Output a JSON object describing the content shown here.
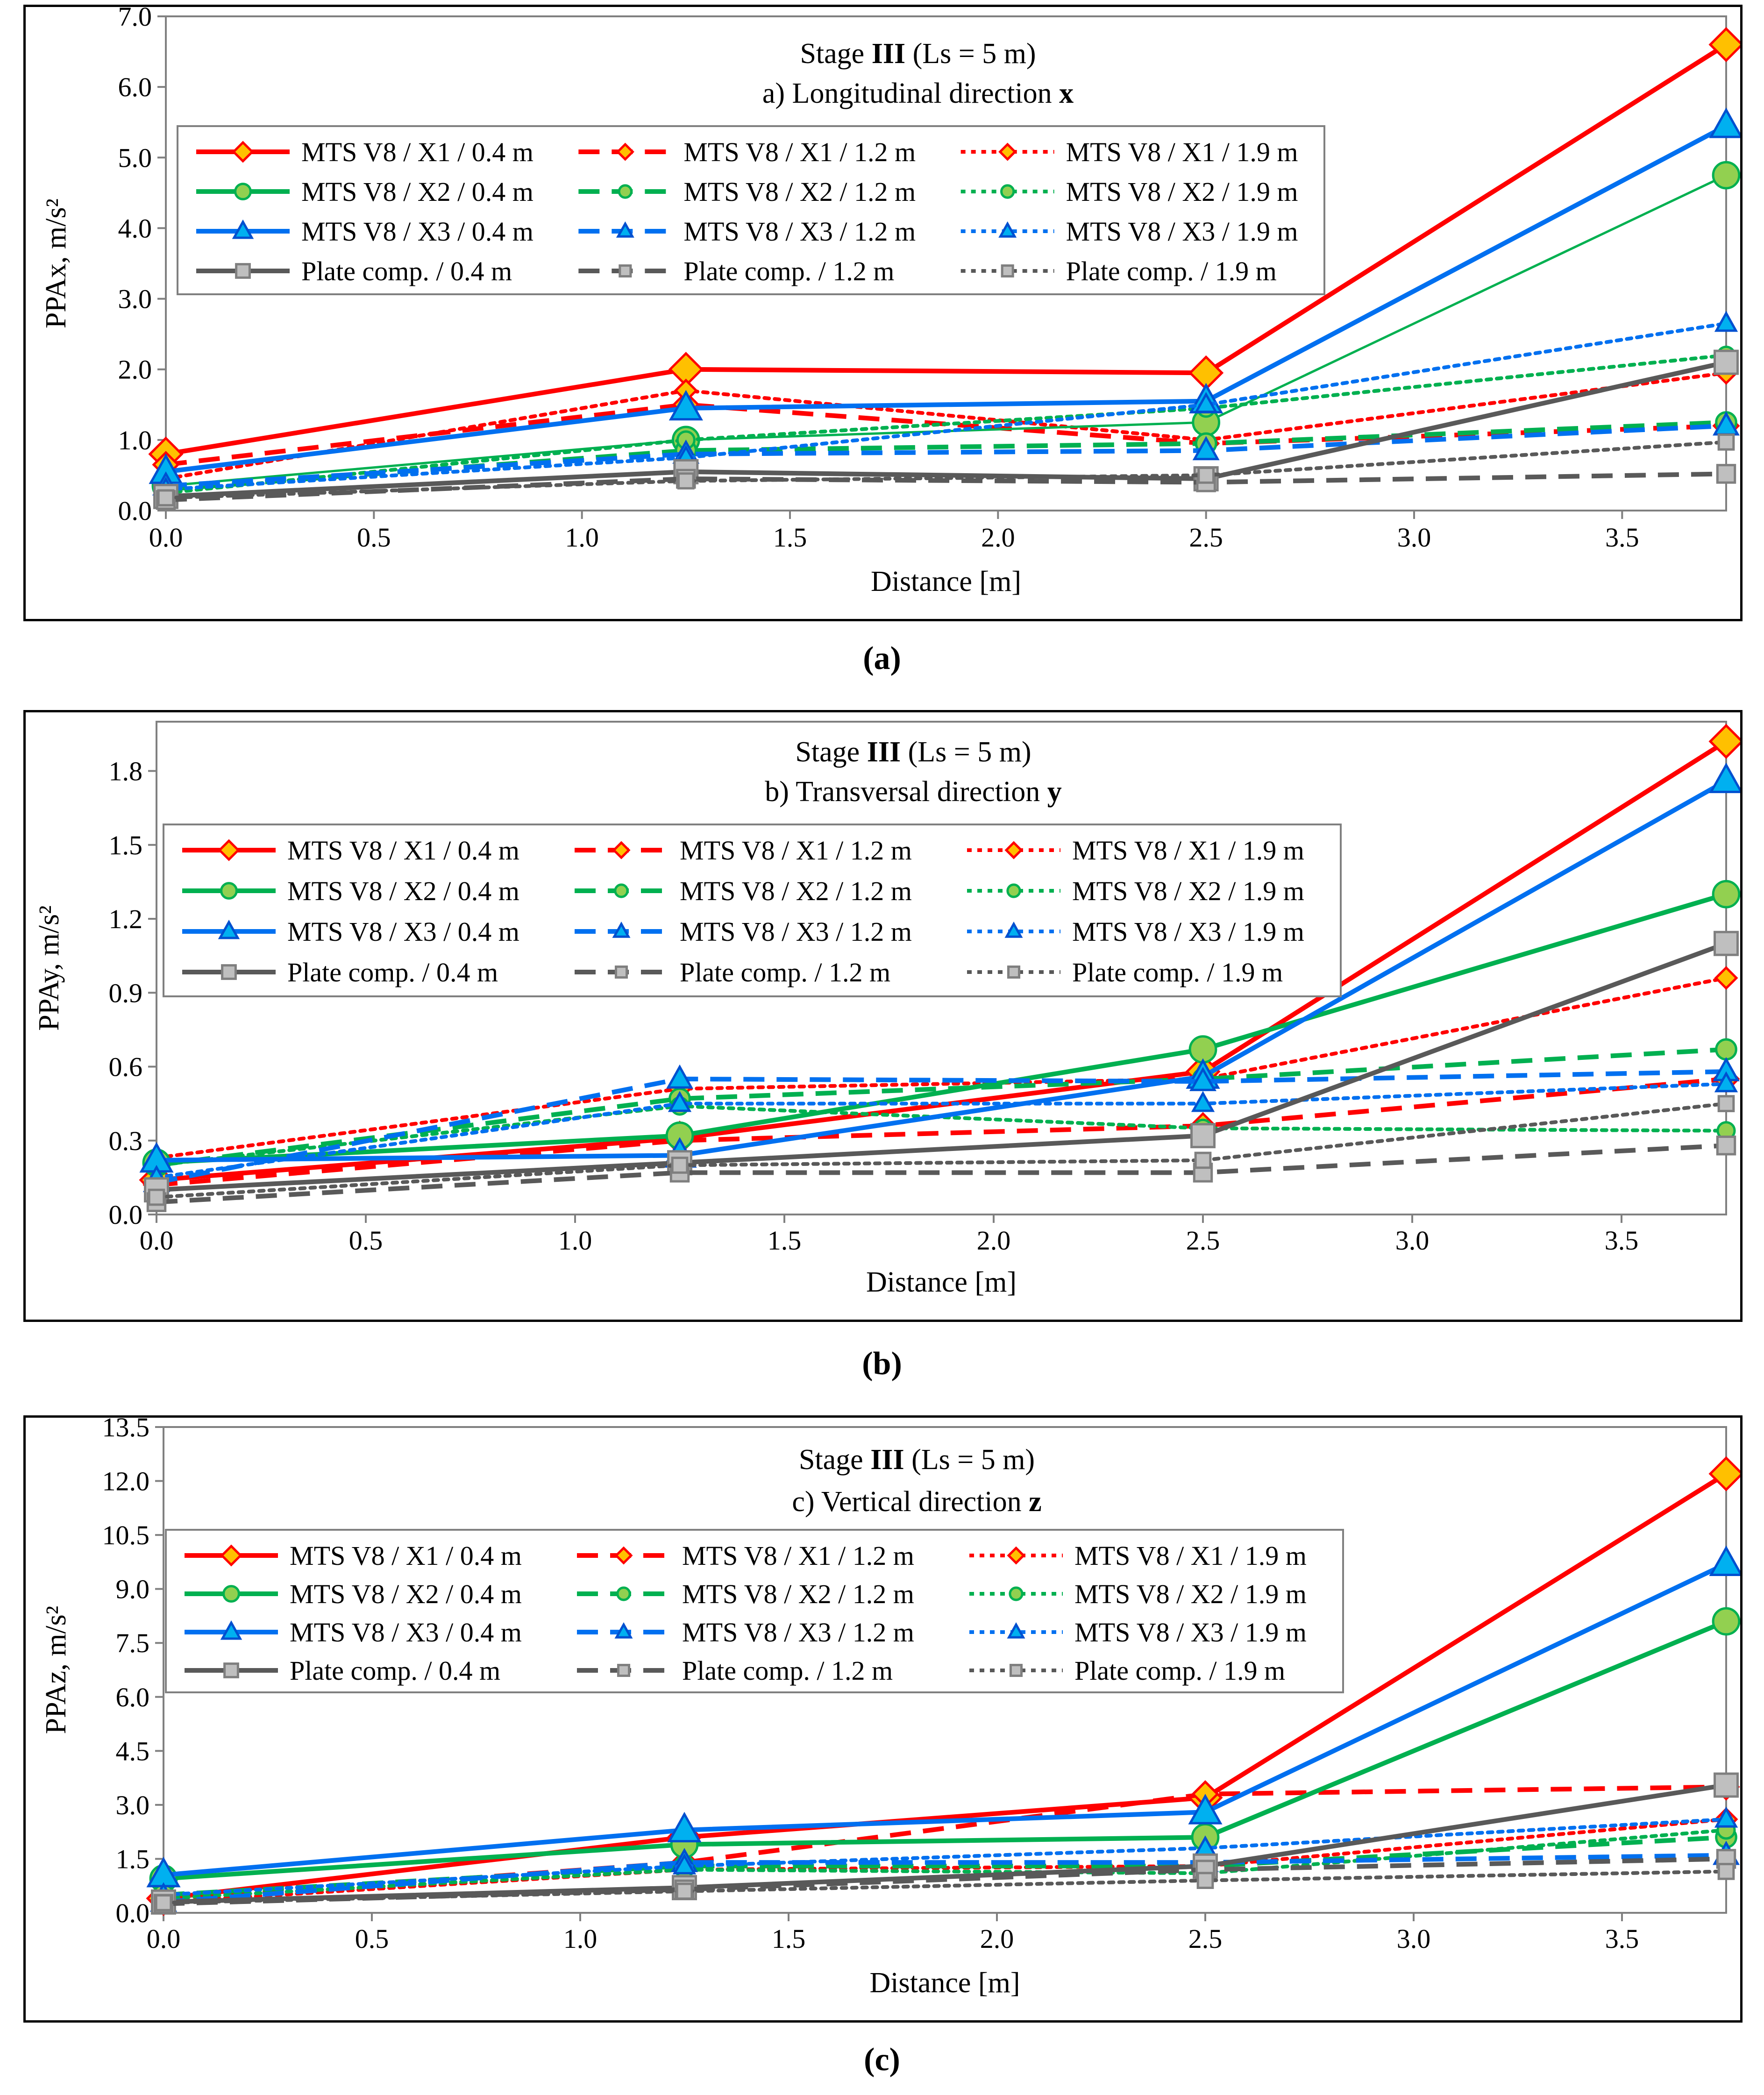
{
  "captions": [
    "(a)",
    "(b)",
    "(c)"
  ],
  "legend_entries": [
    "MTS V8 / X1 / 0.4 m",
    "MTS V8 / X1 / 1.2 m",
    "MTS V8 / X1 / 1.9 m",
    "MTS V8 / X2 / 0.4 m",
    "MTS V8 / X2 / 1.2 m",
    "MTS V8 / X2 / 1.9 m",
    "MTS V8 / X3 / 0.4 m",
    "MTS V8 / X3 / 1.2 m",
    "MTS V8 / X3 / 1.9 m",
    "Plate comp. / 0.4 m",
    "Plate comp. / 1.2 m",
    "Plate comp. / 1.9 m"
  ],
  "series_styles": {
    "X1": {
      "color": "#ff0000",
      "marker": "diamond",
      "marker_fill": "#ffc000",
      "marker_stroke": "#ff0000"
    },
    "X2": {
      "color": "#00b050",
      "marker": "circle",
      "marker_fill": "#92d050",
      "marker_stroke": "#00b050"
    },
    "X3": {
      "color": "#0070f0",
      "marker": "triangle",
      "marker_fill": "#00b0f0",
      "marker_stroke": "#0050d0"
    },
    "PC": {
      "color": "#595959",
      "marker": "square",
      "marker_fill": "#bfbfbf",
      "marker_stroke": "#7f7f7f"
    }
  },
  "chart_data": [
    {
      "type": "line",
      "title_line1_prefix": "Stage ",
      "title_line1_bold": "III",
      "title_line1_suffix": " (Ls = 5 m)",
      "title_line2_text": "a) Longitudinal direction ",
      "title_line2_bold": "x",
      "xlabel": "Distance [m]",
      "ylabel": "PPAx,  m/s²",
      "xlim": [
        0,
        3.75
      ],
      "ylim": [
        0,
        7
      ],
      "xticks": [
        "0.0",
        "0.5",
        "1.0",
        "1.5",
        "2.0",
        "2.5",
        "3.0",
        "3.5"
      ],
      "xtick_values": [
        0,
        0.5,
        1,
        1.5,
        2,
        2.5,
        3,
        3.5
      ],
      "yticks": [
        "0.0",
        "1.0",
        "2.0",
        "3.0",
        "4.0",
        "5.0",
        "6.0",
        "7.0"
      ],
      "ytick_values": [
        0,
        1,
        2,
        3,
        4,
        5,
        6,
        7
      ],
      "x": [
        0,
        1.25,
        2.5,
        3.75
      ],
      "series": [
        {
          "name": "MTS V8 / X1 / 0.4 m",
          "group": "X1",
          "dist": "0.4",
          "values": [
            0.8,
            2.0,
            1.95,
            6.6
          ]
        },
        {
          "name": "MTS V8 / X1 / 1.2 m",
          "group": "X1",
          "dist": "1.2",
          "values": [
            0.65,
            1.5,
            0.95,
            1.2
          ]
        },
        {
          "name": "MTS V8 / X1 / 1.9 m",
          "group": "X1",
          "dist": "1.9",
          "values": [
            0.45,
            1.7,
            1.0,
            1.95
          ]
        },
        {
          "name": "MTS V8 / X2 / 0.4 m",
          "group": "X2",
          "dist": "0.4",
          "values": [
            0.35,
            1.0,
            1.25,
            4.75
          ]
        },
        {
          "name": "MTS V8 / X2 / 1.2 m",
          "group": "X2",
          "dist": "1.2",
          "values": [
            0.3,
            0.85,
            0.95,
            1.25
          ]
        },
        {
          "name": "MTS V8 / X2 / 1.9 m",
          "group": "X2",
          "dist": "1.9",
          "values": [
            0.25,
            1.0,
            1.45,
            2.2
          ]
        },
        {
          "name": "MTS V8 / X3 / 0.4 m",
          "group": "X3",
          "dist": "0.4",
          "values": [
            0.55,
            1.45,
            1.55,
            5.45
          ]
        },
        {
          "name": "MTS V8 / X3 / 1.2 m",
          "group": "X3",
          "dist": "1.2",
          "values": [
            0.35,
            0.8,
            0.85,
            1.2
          ]
        },
        {
          "name": "MTS V8 / X3 / 1.9 m",
          "group": "X3",
          "dist": "1.9",
          "values": [
            0.3,
            0.75,
            1.5,
            2.65
          ]
        },
        {
          "name": "Plate comp. / 0.4 m",
          "group": "PC",
          "dist": "0.4",
          "values": [
            0.2,
            0.55,
            0.45,
            2.1
          ]
        },
        {
          "name": "Plate comp. / 1.2 m",
          "group": "PC",
          "dist": "1.2",
          "values": [
            0.15,
            0.45,
            0.4,
            0.52
          ]
        },
        {
          "name": "Plate comp. / 1.9 m",
          "group": "PC",
          "dist": "1.9",
          "values": [
            0.18,
            0.42,
            0.5,
            0.97
          ]
        }
      ]
    },
    {
      "type": "line",
      "title_line1_prefix": "Stage  ",
      "title_line1_bold": "III",
      "title_line1_suffix": " (Ls = 5 m)",
      "title_line2_text": "b) Transversal direction ",
      "title_line2_bold": "y",
      "xlabel": "Distance [m]",
      "ylabel": "PPAy,  m/s²",
      "xlim": [
        0,
        3.75
      ],
      "ylim": [
        0,
        2.0
      ],
      "xticks": [
        "0.0",
        "0.5",
        "1.0",
        "1.5",
        "2.0",
        "2.5",
        "3.0",
        "3.5"
      ],
      "xtick_values": [
        0,
        0.5,
        1,
        1.5,
        2,
        2.5,
        3,
        3.5
      ],
      "yticks": [
        "0.0",
        "0.3",
        "0.6",
        "0.9",
        "1.2",
        "1.5",
        "1.8"
      ],
      "ytick_values": [
        0,
        0.3,
        0.6,
        0.9,
        1.2,
        1.5,
        1.8
      ],
      "x": [
        0,
        1.25,
        2.5,
        3.75
      ],
      "series": [
        {
          "name": "MTS V8 / X1 / 0.4 m",
          "group": "X1",
          "dist": "0.4",
          "values": [
            0.14,
            0.31,
            0.58,
            1.92
          ]
        },
        {
          "name": "MTS V8 / X1 / 1.2 m",
          "group": "X1",
          "dist": "1.2",
          "values": [
            0.12,
            0.3,
            0.36,
            0.55
          ]
        },
        {
          "name": "MTS V8 / X1 / 1.9 m",
          "group": "X1",
          "dist": "1.9",
          "values": [
            0.23,
            0.51,
            0.55,
            0.96
          ]
        },
        {
          "name": "MTS V8 / X2 / 0.4 m",
          "group": "X2",
          "dist": "0.4",
          "values": [
            0.21,
            0.32,
            0.67,
            1.3
          ]
        },
        {
          "name": "MTS V8 / X2 / 1.2 m",
          "group": "X2",
          "dist": "1.2",
          "values": [
            0.2,
            0.47,
            0.55,
            0.67
          ]
        },
        {
          "name": "MTS V8 / X2 / 1.9 m",
          "group": "X2",
          "dist": "1.9",
          "values": [
            0.2,
            0.44,
            0.35,
            0.34
          ]
        },
        {
          "name": "MTS V8 / X3 / 0.4 m",
          "group": "X3",
          "dist": "0.4",
          "values": [
            0.22,
            0.24,
            0.56,
            1.76
          ]
        },
        {
          "name": "MTS V8 / X3 / 1.2 m",
          "group": "X3",
          "dist": "1.2",
          "values": [
            0.13,
            0.55,
            0.54,
            0.58
          ]
        },
        {
          "name": "MTS V8 / X3 / 1.9 m",
          "group": "X3",
          "dist": "1.9",
          "values": [
            0.15,
            0.45,
            0.45,
            0.53
          ]
        },
        {
          "name": "Plate comp. / 0.4 m",
          "group": "PC",
          "dist": "0.4",
          "values": [
            0.1,
            0.21,
            0.32,
            1.1
          ]
        },
        {
          "name": "Plate comp. / 1.2 m",
          "group": "PC",
          "dist": "1.2",
          "values": [
            0.05,
            0.17,
            0.17,
            0.28
          ]
        },
        {
          "name": "Plate comp. / 1.9 m",
          "group": "PC",
          "dist": "1.9",
          "values": [
            0.07,
            0.2,
            0.22,
            0.45
          ]
        }
      ]
    },
    {
      "type": "line",
      "title_line1_prefix": "Stage ",
      "title_line1_bold": "III",
      "title_line1_suffix": " (Ls = 5 m)",
      "title_line2_text": "c) Vertical direction ",
      "title_line2_bold": "z",
      "xlabel": "Distance [m]",
      "ylabel": "PPAz,  m/s²",
      "xlim": [
        0,
        3.75
      ],
      "ylim": [
        0,
        13.5
      ],
      "xticks": [
        "0.0",
        "0.5",
        "1.0",
        "1.5",
        "2.0",
        "2.5",
        "3.0",
        "3.5"
      ],
      "xtick_values": [
        0,
        0.5,
        1,
        1.5,
        2,
        2.5,
        3,
        3.5
      ],
      "yticks": [
        "0.0",
        "1.5",
        "3.0",
        "4.5",
        "6.0",
        "7.5",
        "9.0",
        "10.5",
        "12.0",
        "13.5"
      ],
      "ytick_values": [
        0,
        1.5,
        3,
        4.5,
        6,
        7.5,
        9,
        10.5,
        12,
        13.5
      ],
      "x": [
        0,
        1.25,
        2.5,
        3.75
      ],
      "series": [
        {
          "name": "MTS V8 / X1 / 0.4 m",
          "group": "X1",
          "dist": "0.4",
          "values": [
            0.4,
            2.1,
            3.2,
            12.2
          ]
        },
        {
          "name": "MTS V8 / X1 / 1.2 m",
          "group": "X1",
          "dist": "1.2",
          "values": [
            0.35,
            1.4,
            3.3,
            3.5
          ]
        },
        {
          "name": "MTS V8 / X1 / 1.9 m",
          "group": "X1",
          "dist": "1.9",
          "values": [
            0.3,
            1.2,
            1.3,
            2.6
          ]
        },
        {
          "name": "MTS V8 / X2 / 0.4 m",
          "group": "X2",
          "dist": "0.4",
          "values": [
            0.95,
            1.9,
            2.1,
            8.1
          ]
        },
        {
          "name": "MTS V8 / X2 / 1.2 m",
          "group": "X2",
          "dist": "1.2",
          "values": [
            0.5,
            1.3,
            1.3,
            2.1
          ]
        },
        {
          "name": "MTS V8 / X2 / 1.9 m",
          "group": "X2",
          "dist": "1.9",
          "values": [
            0.4,
            1.2,
            1.1,
            2.3
          ]
        },
        {
          "name": "MTS V8 / X3 / 0.4 m",
          "group": "X3",
          "dist": "0.4",
          "values": [
            1.05,
            2.3,
            2.8,
            9.7
          ]
        },
        {
          "name": "MTS V8 / X3 / 1.2 m",
          "group": "X3",
          "dist": "1.2",
          "values": [
            0.3,
            1.4,
            1.4,
            1.6
          ]
        },
        {
          "name": "MTS V8 / X3 / 1.9 m",
          "group": "X3",
          "dist": "1.9",
          "values": [
            0.5,
            1.3,
            1.8,
            2.6
          ]
        },
        {
          "name": "Plate comp. / 0.4 m",
          "group": "PC",
          "dist": "0.4",
          "values": [
            0.3,
            0.7,
            1.3,
            3.55
          ]
        },
        {
          "name": "Plate comp. / 1.2 m",
          "group": "PC",
          "dist": "1.2",
          "values": [
            0.25,
            0.65,
            1.2,
            1.5
          ]
        },
        {
          "name": "Plate comp. / 1.9 m",
          "group": "PC",
          "dist": "1.9",
          "values": [
            0.28,
            0.6,
            0.9,
            1.15
          ]
        }
      ]
    }
  ]
}
